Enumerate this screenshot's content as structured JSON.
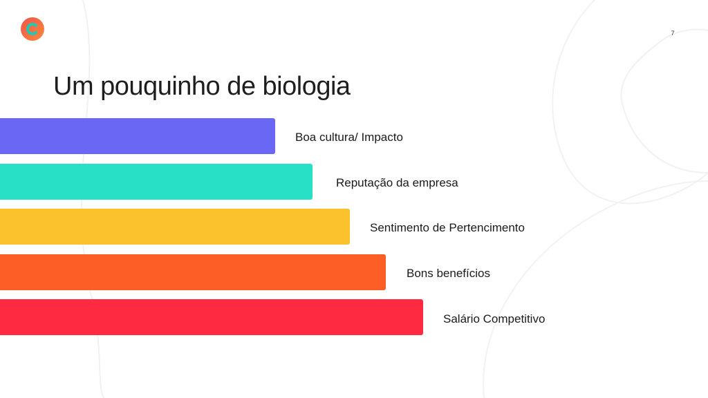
{
  "slide": {
    "title": "Um pouquinho de biologia",
    "page_number": "7"
  },
  "logo": {
    "icon": "brand-logo-icon",
    "colors": [
      "#f0534b",
      "#fb8a3c",
      "#1fc9b4"
    ]
  },
  "levels": [
    {
      "label": "Boa cultura/ Impacto",
      "color": "#6a67f4"
    },
    {
      "label": "Reputação da empresa",
      "color": "#27e0c6"
    },
    {
      "label": "Sentimento de Pertencimento",
      "color": "#fcc22e"
    },
    {
      "label": "Bons benefícios",
      "color": "#fc5e26"
    },
    {
      "label": "Salário Competitivo",
      "color": "#fd2a42"
    }
  ]
}
